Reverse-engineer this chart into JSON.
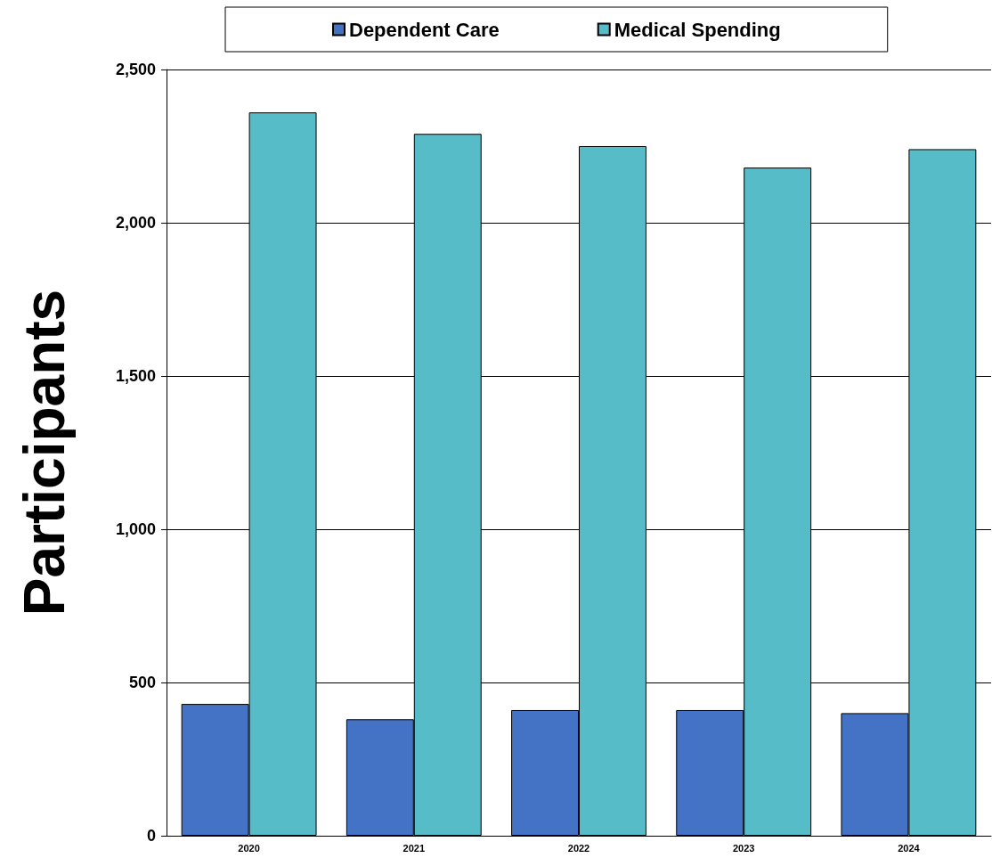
{
  "chart_data": {
    "type": "bar",
    "ylabel": "Participants",
    "categories": [
      "2020",
      "2021",
      "2022",
      "2023",
      "2024"
    ],
    "series": [
      {
        "name": "Dependent Care",
        "color": "#4472c4",
        "values": [
          430,
          380,
          410,
          410,
          400
        ]
      },
      {
        "name": "Medical Spending",
        "color": "#56bcc8",
        "values": [
          2360,
          2290,
          2250,
          2180,
          2240
        ]
      }
    ],
    "ylim": [
      0,
      2500
    ],
    "yticks": [
      0,
      500,
      {
        "value": 1000,
        "label": "1,000"
      },
      {
        "value": 1500,
        "label": "1,500"
      },
      {
        "value": 2000,
        "label": "2,000"
      },
      {
        "value": 2500,
        "label": "2,500"
      }
    ],
    "grid": "y",
    "legend": "top"
  }
}
